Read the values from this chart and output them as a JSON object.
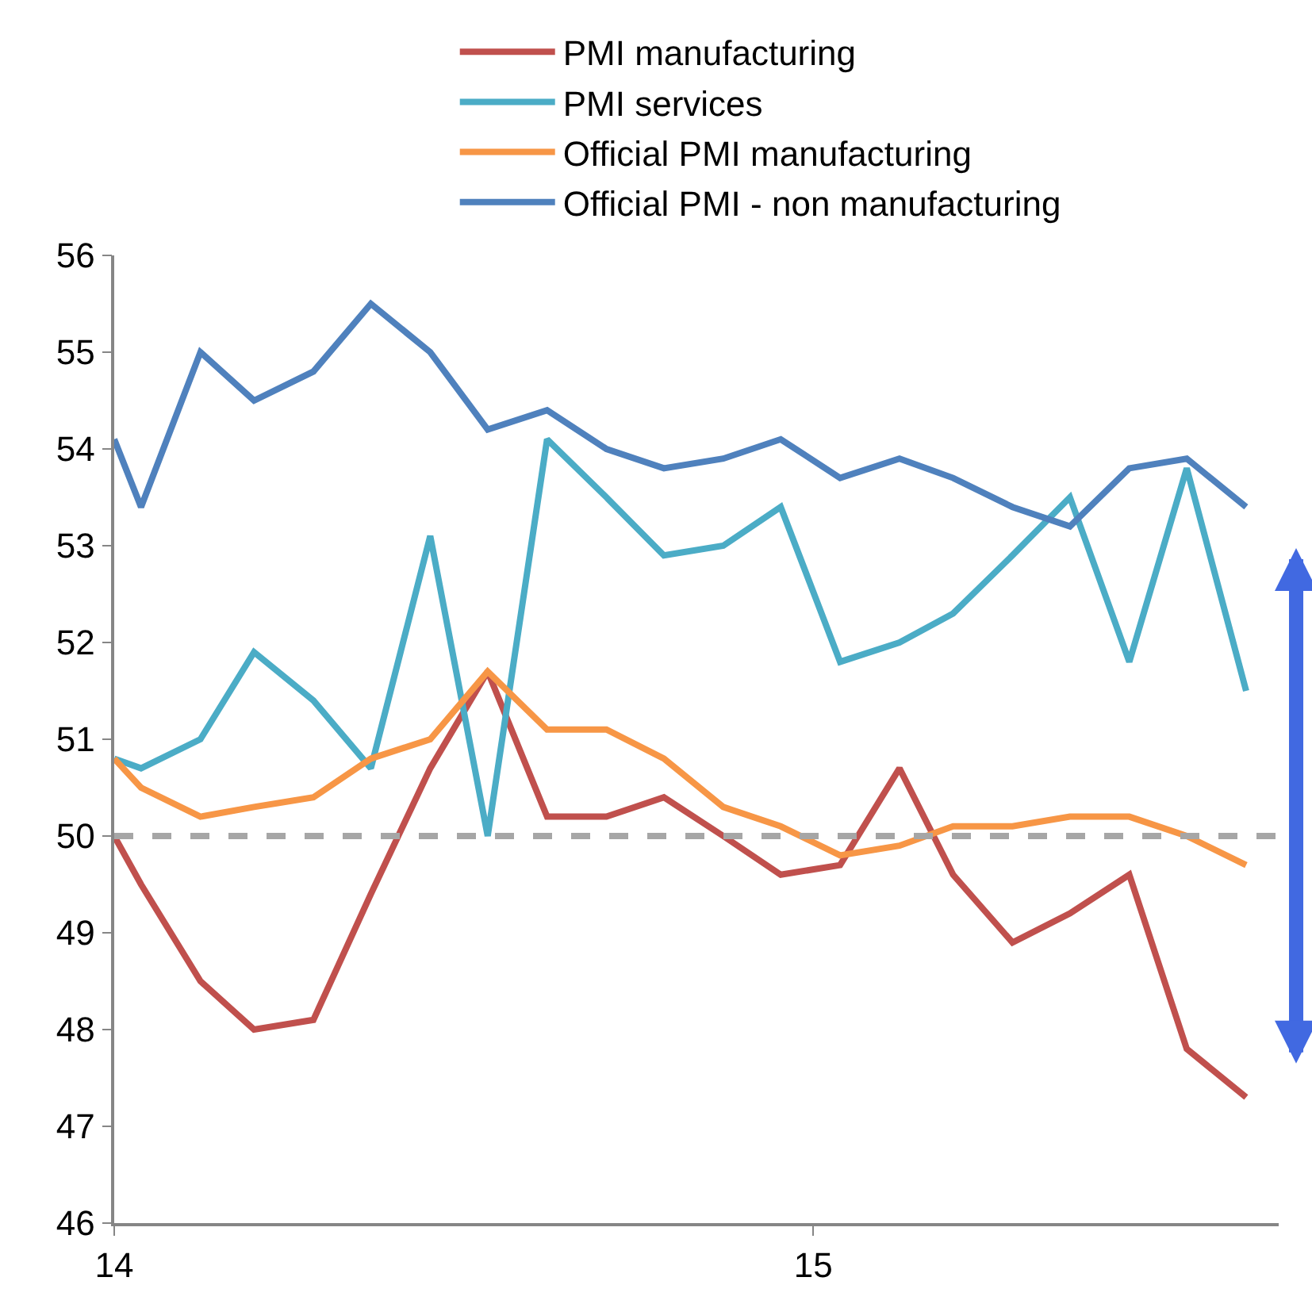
{
  "chart_data": {
    "type": "line",
    "x": [
      "2014-01-01",
      "2014-01-15",
      "2014-02-15",
      "2014-03-15",
      "2014-04-15",
      "2014-05-15",
      "2014-06-15",
      "2014-07-15",
      "2014-08-15",
      "2014-09-15",
      "2014-10-15",
      "2014-11-15",
      "2014-12-15",
      "2015-01-15",
      "2015-02-15",
      "2015-03-15",
      "2015-04-15",
      "2015-05-15",
      "2015-06-15",
      "2015-07-15",
      "2015-08-15"
    ],
    "series": [
      {
        "name": "PMI manufacturing",
        "color": "#c0504d",
        "values": [
          50.0,
          49.5,
          48.5,
          48.0,
          48.1,
          49.4,
          50.7,
          51.7,
          50.2,
          50.2,
          50.4,
          50.0,
          49.6,
          49.7,
          50.7,
          49.6,
          48.9,
          49.2,
          49.6,
          47.8,
          47.3
        ]
      },
      {
        "name": "PMI services",
        "color": "#4bacc6",
        "values": [
          50.8,
          50.7,
          51.0,
          51.9,
          51.4,
          50.7,
          53.1,
          50.0,
          54.1,
          53.5,
          52.9,
          53.0,
          53.4,
          51.8,
          52.0,
          52.3,
          52.9,
          53.5,
          51.8,
          53.8,
          51.5
        ]
      },
      {
        "name": "Official PMI manufacturing",
        "color": "#f79646",
        "values": [
          50.8,
          50.5,
          50.2,
          50.3,
          50.4,
          50.8,
          51.0,
          51.7,
          51.1,
          51.1,
          50.8,
          50.3,
          50.1,
          49.8,
          49.9,
          50.1,
          50.1,
          50.2,
          50.2,
          50.0,
          49.7
        ]
      },
      {
        "name": "Official PMI - non manufacturing",
        "color": "#4f81bd",
        "values": [
          54.1,
          53.4,
          55.0,
          54.5,
          54.8,
          55.5,
          55.0,
          54.2,
          54.4,
          54.0,
          53.8,
          53.9,
          54.1,
          53.7,
          53.9,
          53.7,
          53.4,
          53.2,
          53.8,
          53.9,
          53.4
        ]
      }
    ],
    "xlim": [
      "2014-01-01",
      "2015-09-01"
    ],
    "xticks": [
      {
        "value": "2014",
        "label": "14"
      },
      {
        "value": "2015",
        "label": "15"
      }
    ],
    "ylim": [
      46,
      56
    ],
    "yticks": [
      46,
      47,
      48,
      49,
      50,
      51,
      52,
      53,
      54,
      55,
      56
    ],
    "ref_lines": [
      {
        "axis": "y",
        "value": 50,
        "label": null,
        "color": "#a6a6a6",
        "line_style": "dashed"
      }
    ],
    "legend": "top",
    "marker": "none",
    "line_style": "solid"
  }
}
